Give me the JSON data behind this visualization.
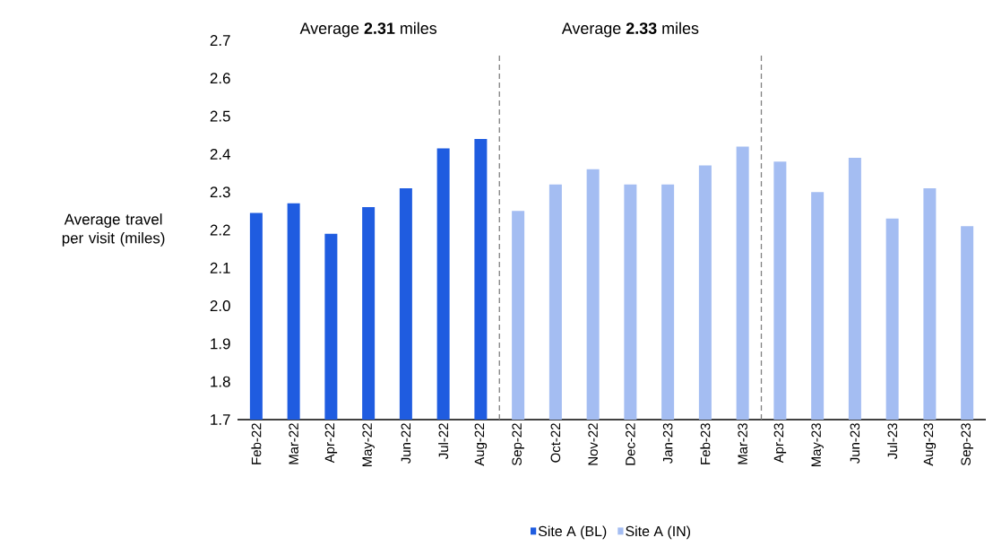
{
  "chart_data": {
    "type": "bar",
    "ylabel": "Average travel per visit (miles)",
    "categories": [
      "Feb-22",
      "Mar-22",
      "Apr-22",
      "May-22",
      "Jun-22",
      "Jul-22",
      "Aug-22",
      "Sep-22",
      "Oct-22",
      "Nov-22",
      "Dec-22",
      "Jan-23",
      "Feb-23",
      "Mar-23",
      "Apr-23",
      "May-23",
      "Jun-23",
      "Jul-23",
      "Aug-23",
      "Sep-23"
    ],
    "series": [
      {
        "name": "Site A (BL)",
        "color": "#1f5ce0",
        "values": [
          2.245,
          2.27,
          2.19,
          2.26,
          2.31,
          2.415,
          2.44,
          null,
          null,
          null,
          null,
          null,
          null,
          null,
          null,
          null,
          null,
          null,
          null,
          null
        ]
      },
      {
        "name": "Site A (IN)",
        "color": "#a4bdf2",
        "values": [
          null,
          null,
          null,
          null,
          null,
          null,
          null,
          2.25,
          2.32,
          2.36,
          2.32,
          2.32,
          2.37,
          2.42,
          2.38,
          2.3,
          2.39,
          2.23,
          2.31,
          2.21
        ]
      }
    ],
    "ylim": [
      1.7,
      2.7
    ],
    "yticks": [
      1.7,
      1.8,
      1.9,
      {
        "value": 2.0,
        "label": "2.0"
      },
      2.1,
      2.2,
      2.3,
      2.4,
      2.5,
      2.6,
      2.7
    ],
    "annotations": [
      "Average **2.31** miles",
      "Average **2.33** miles"
    ],
    "grid": false,
    "legend": "bottom"
  }
}
